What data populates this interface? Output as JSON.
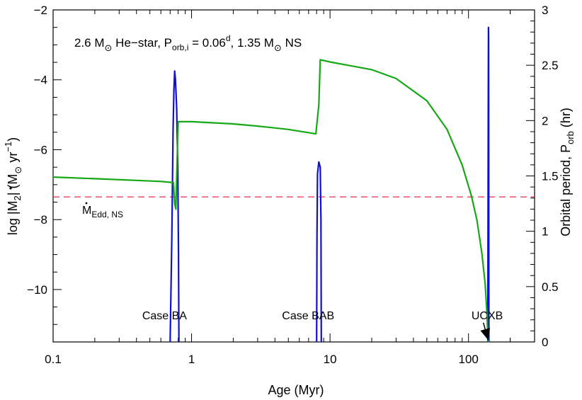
{
  "chart_data": {
    "type": "line",
    "title": "2.6 M⊙ He-star,  P_orb,i = 0.06^d, 1.35 M⊙ NS",
    "title_parts": {
      "a": "2.6 M",
      "sun": "⊙",
      "b": " He−star,  P",
      "orb_sub": "orb,i",
      "c": " = 0.06",
      "d_sup": "d",
      "e": ", 1.35 M",
      "f": " NS"
    },
    "xlabel": "Age  (Myr)",
    "xscale": "log",
    "xlim": [
      0.1,
      300
    ],
    "xticks": [
      {
        "value": 0.1,
        "label": "0.1"
      },
      {
        "value": 1,
        "label": "1"
      },
      {
        "value": 10,
        "label": "10"
      },
      {
        "value": 100,
        "label": "100"
      }
    ],
    "ylabel_left": {
      "pre": "log |",
      "mdot": "M",
      "sub2": "2",
      "mid": "|  (M",
      "sun": "⊙",
      "yr": " yr",
      "exp": "−1",
      "close": ")"
    },
    "ylim_left": [
      -11.5,
      -2
    ],
    "yticks_left": [
      {
        "value": -4,
        "label": "−4"
      },
      {
        "value": -6,
        "label": "−6"
      },
      {
        "value": -8,
        "label": "−8"
      },
      {
        "value": -10,
        "label": "−10"
      },
      {
        "value": -2,
        "label": "−2"
      }
    ],
    "ylabel_right": {
      "pre": "Orbital period,  P",
      "sub": "orb",
      "post": "  (hr)"
    },
    "ylim_right": [
      0,
      3
    ],
    "yticks_right": [
      {
        "value": 0,
        "label": "0"
      },
      {
        "value": 0.5,
        "label": "0.5"
      },
      {
        "value": 1,
        "label": "1"
      },
      {
        "value": 1.5,
        "label": "1.5"
      },
      {
        "value": 2,
        "label": "2"
      },
      {
        "value": 2.5,
        "label": "2.5"
      },
      {
        "value": 3,
        "label": "3"
      }
    ],
    "series": [
      {
        "axis": "left",
        "color": "#1010d0",
        "points": [
          [
            0.7,
            -11.5
          ],
          [
            0.72,
            -8.5
          ],
          [
            0.735,
            -5.5
          ],
          [
            0.745,
            -4.3
          ],
          [
            0.755,
            -3.75
          ],
          [
            0.765,
            -4.0
          ],
          [
            0.78,
            -4.8
          ],
          [
            0.795,
            -6.5
          ],
          [
            0.805,
            -9.0
          ],
          [
            0.81,
            -11.5
          ],
          [
            null,
            null
          ],
          [
            8.0,
            -11.5
          ],
          [
            8.05,
            -8.5
          ],
          [
            8.12,
            -6.7
          ],
          [
            8.3,
            -6.35
          ],
          [
            8.5,
            -6.5
          ],
          [
            8.6,
            -8.0
          ],
          [
            8.65,
            -11.5
          ],
          [
            null,
            null
          ],
          [
            138,
            -11.5
          ],
          [
            138.3,
            -9.0
          ],
          [
            138.7,
            -6.0
          ],
          [
            139.1,
            -4.0
          ],
          [
            139.4,
            -2.5
          ],
          [
            139.7,
            -2.8
          ],
          [
            140,
            -6.0
          ],
          [
            140.3,
            -11.5
          ]
        ]
      },
      {
        "axis": "right",
        "color": "#16a816",
        "points": [
          [
            0.1,
            1.49
          ],
          [
            0.2,
            1.475
          ],
          [
            0.4,
            1.46
          ],
          [
            0.6,
            1.45
          ],
          [
            0.74,
            1.44
          ],
          [
            0.755,
            1.25
          ],
          [
            0.77,
            1.2
          ],
          [
            0.785,
            1.6
          ],
          [
            0.8,
            1.99
          ],
          [
            1.0,
            1.99
          ],
          [
            2.0,
            1.97
          ],
          [
            3.0,
            1.95
          ],
          [
            5.0,
            1.92
          ],
          [
            7.9,
            1.88
          ],
          [
            8.3,
            2.14
          ],
          [
            8.5,
            2.55
          ],
          [
            10,
            2.53
          ],
          [
            20,
            2.46
          ],
          [
            30,
            2.38
          ],
          [
            50,
            2.18
          ],
          [
            70,
            1.92
          ],
          [
            90,
            1.6
          ],
          [
            105,
            1.32
          ],
          [
            115,
            1.1
          ],
          [
            125,
            0.8
          ],
          [
            132,
            0.52
          ],
          [
            136,
            0.25
          ],
          [
            138,
            0.05
          ],
          [
            139,
            0.0
          ]
        ]
      }
    ],
    "reference_line": {
      "axis": "left",
      "value": -7.35,
      "color": "#e0304a",
      "style": "dashed",
      "label_main": "M",
      "label_sub": "Edd, NS"
    },
    "annotations": [
      {
        "text": "Case BA",
        "x": 0.44,
        "y": -10.85
      },
      {
        "text": "Case BAB",
        "x": 4.5,
        "y": -10.85
      },
      {
        "text": "UCXB",
        "x": 105,
        "y": -10.85
      }
    ],
    "arrow": {
      "from": [
        128,
        -10.95
      ],
      "to": [
        139,
        -11.45
      ],
      "color": "#000000"
    },
    "grid": false,
    "legend": "none"
  }
}
